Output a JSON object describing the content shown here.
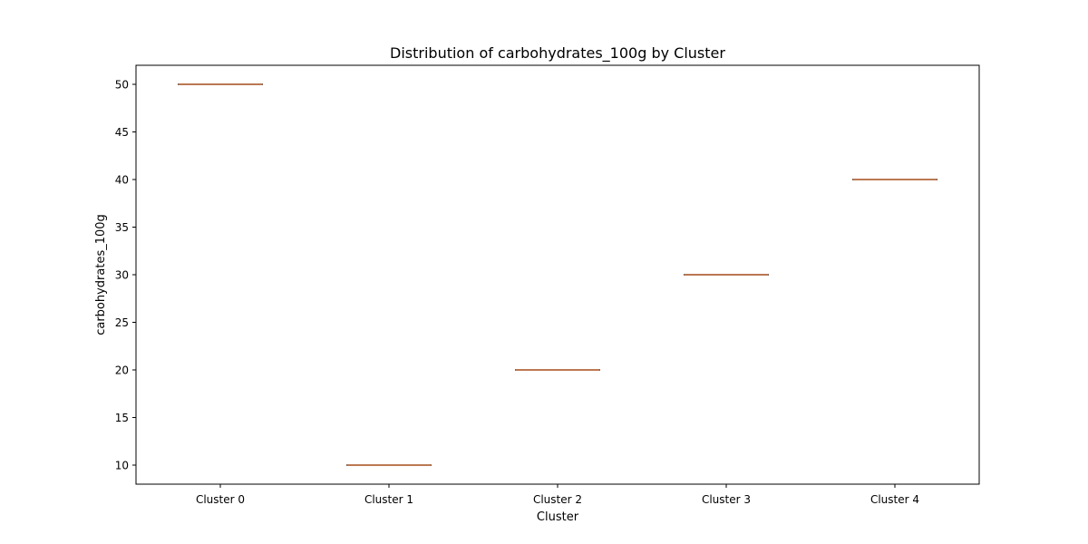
{
  "chart_data": {
    "type": "box",
    "title": "Distribution of carbohydrates_100g by Cluster",
    "xlabel": "Cluster",
    "ylabel": "carbohydrates_100g",
    "categories": [
      "Cluster 0",
      "Cluster 1",
      "Cluster 2",
      "Cluster 3",
      "Cluster 4"
    ],
    "values": [
      50,
      10,
      20,
      30,
      40
    ],
    "ylim": [
      8,
      52
    ],
    "yticks": [
      10,
      15,
      20,
      25,
      30,
      35,
      40,
      45,
      50
    ],
    "grid": false,
    "colors": {
      "median": "#dd8452",
      "box": "#555555",
      "axis": "#000000"
    }
  }
}
